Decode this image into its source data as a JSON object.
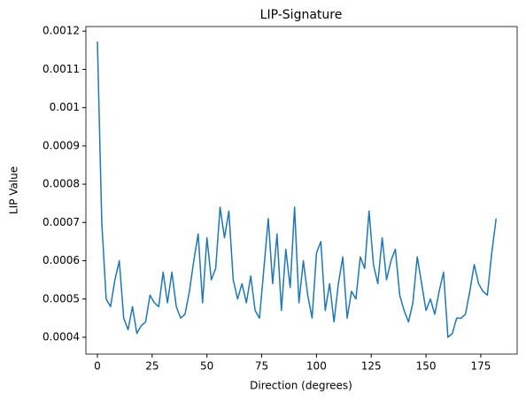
{
  "chart_data": {
    "type": "line",
    "title": "LIP-Signature",
    "x_label": "Direction (degrees)",
    "y_label": "LIP Value",
    "x": [
      0,
      2,
      4,
      6,
      8,
      10,
      12,
      14,
      16,
      18,
      20,
      22,
      24,
      26,
      28,
      30,
      32,
      34,
      36,
      38,
      40,
      42,
      44,
      46,
      48,
      50,
      52,
      54,
      56,
      58,
      60,
      62,
      64,
      66,
      68,
      70,
      72,
      74,
      76,
      78,
      80,
      82,
      84,
      86,
      88,
      90,
      92,
      94,
      96,
      98,
      100,
      102,
      104,
      106,
      108,
      110,
      112,
      114,
      116,
      118,
      120,
      122,
      124,
      126,
      128,
      130,
      132,
      134,
      136,
      138,
      140,
      142,
      144,
      146,
      148,
      150,
      152,
      154,
      156,
      158,
      160,
      162,
      164,
      166,
      168,
      170,
      172,
      174,
      176,
      178,
      180,
      182
    ],
    "series": [
      {
        "name": "LIP-Signature",
        "color": "#1f77b4",
        "values": [
          0.001173,
          0.0007,
          0.0005,
          0.00048,
          0.00055,
          0.0006,
          0.00045,
          0.00042,
          0.00048,
          0.00041,
          0.00043,
          0.00044,
          0.00051,
          0.00049,
          0.00048,
          0.00057,
          0.00049,
          0.00057,
          0.00048,
          0.00045,
          0.00046,
          0.00052,
          0.0006,
          0.00067,
          0.00049,
          0.00066,
          0.00055,
          0.00058,
          0.00074,
          0.00066,
          0.00073,
          0.00055,
          0.0005,
          0.00054,
          0.00049,
          0.00056,
          0.00047,
          0.00045,
          0.00058,
          0.00071,
          0.00054,
          0.00067,
          0.00047,
          0.00063,
          0.00053,
          0.00074,
          0.00049,
          0.0006,
          0.00051,
          0.00045,
          0.00062,
          0.00065,
          0.00047,
          0.00054,
          0.00044,
          0.00054,
          0.00061,
          0.00045,
          0.00052,
          0.0005,
          0.00061,
          0.00058,
          0.00073,
          0.00059,
          0.00054,
          0.00066,
          0.00055,
          0.0006,
          0.00063,
          0.00051,
          0.00047,
          0.00044,
          0.00049,
          0.00061,
          0.00054,
          0.00047,
          0.0005,
          0.00046,
          0.00052,
          0.00057,
          0.0004,
          0.00041,
          0.00045,
          0.00045,
          0.00046,
          0.00052,
          0.00059,
          0.00054,
          0.00052,
          0.00051,
          0.00062,
          0.00071
        ]
      }
    ],
    "xlim": [
      -5.25,
      191.6
    ],
    "xticks": [
      0,
      25,
      50,
      75,
      100,
      125,
      150,
      175
    ],
    "ylim": [
      0.000356,
      0.001212
    ],
    "yticks": [
      0.0004,
      0.0005,
      0.0006,
      0.0007,
      0.0008,
      0.0009,
      0.001,
      0.0011,
      0.0012
    ]
  }
}
